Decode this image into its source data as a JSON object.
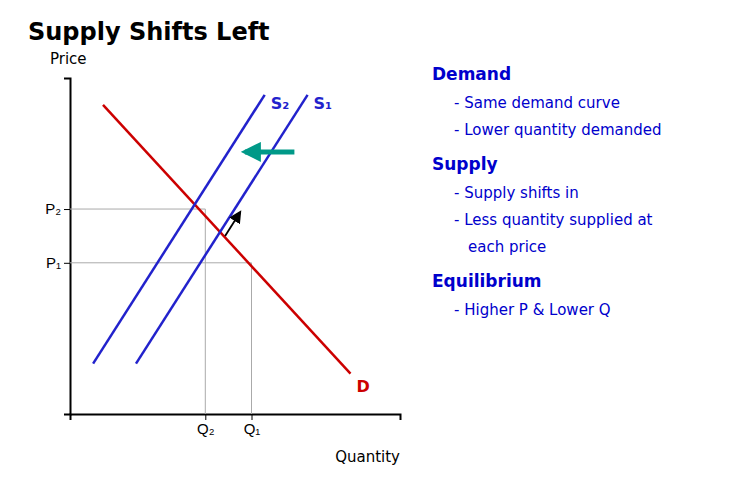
{
  "chart_data": {
    "type": "line",
    "title": "Supply Shifts Left",
    "x_label": "Quantity",
    "y_label": "Price",
    "xlim": [
      0,
      10
    ],
    "ylim": [
      0,
      10
    ],
    "xticks": [
      {
        "value": 4.1,
        "label": "Q₂"
      },
      {
        "value": 5.5,
        "label": "Q₁"
      }
    ],
    "yticks": [
      {
        "value": 6.1,
        "label": "P₂"
      },
      {
        "value": 4.5,
        "label": "P₁"
      }
    ],
    "series": [
      {
        "name": "D",
        "type": "line",
        "color": "#cc0000",
        "x": [
          1.0,
          8.5
        ],
        "values": [
          9.2,
          1.2
        ]
      },
      {
        "name": "S₁",
        "type": "line",
        "color": "#2222cc",
        "x": [
          2.0,
          7.2
        ],
        "values": [
          1.5,
          9.5
        ]
      },
      {
        "name": "S₂",
        "type": "line",
        "color": "#2222cc",
        "x": [
          0.7,
          5.9
        ],
        "values": [
          1.5,
          9.5
        ]
      },
      {
        "type": "drop_lines",
        "color": "#aaaaaa",
        "x": [
          5.5,
          4.1
        ],
        "values": [
          4.5,
          6.1
        ]
      },
      {
        "type": "arrow",
        "color": "#009988",
        "x": [
          6.8,
          5.3
        ],
        "values": [
          7.8,
          7.8
        ]
      },
      {
        "type": "arrow",
        "color": "#000000",
        "x": [
          4.7,
          5.15
        ],
        "values": [
          5.3,
          6.0
        ]
      }
    ],
    "annotations": {
      "color": "#0000cc",
      "sections": [
        {
          "heading": "Demand",
          "lines": [
            "- Same demand curve",
            "- Lower quantity demanded"
          ]
        },
        {
          "heading": "Supply",
          "lines": [
            "- Supply shifts in",
            "- Less quantity supplied at",
            "each price"
          ]
        },
        {
          "heading": "Equilibrium",
          "lines": [
            "- Higher P & Lower Q"
          ]
        }
      ]
    }
  }
}
